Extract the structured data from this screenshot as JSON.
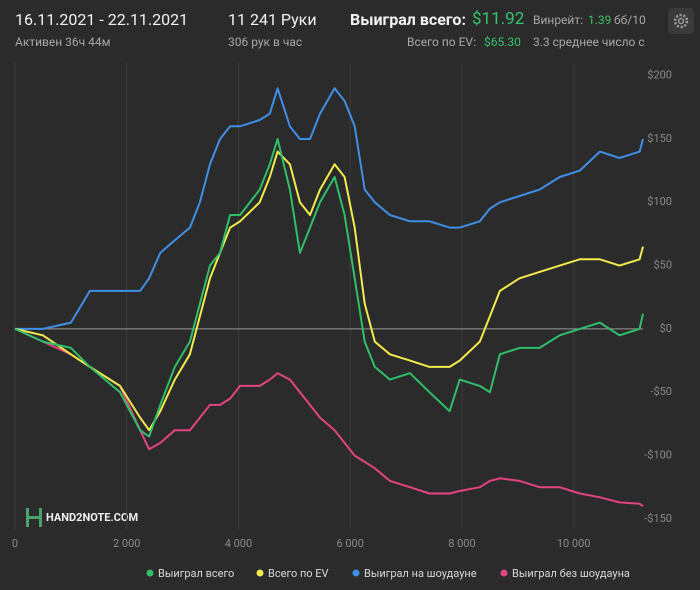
{
  "header": {
    "date_range": "16.11.2021 - 22.11.2021",
    "active": "Активен 36ч 44м",
    "hands": "11 241 Руки",
    "hands_per_hour": "306 рук в час",
    "won_label": "Выиграл всего:",
    "won_value": "$11.92",
    "ev_label": "Всего по EV:",
    "ev_value": "$65.30",
    "winrate_label": "Винрейт:",
    "winrate_value": "1.39",
    "winrate_unit": "бб/10",
    "avg_text": "3.3 среднее число с"
  },
  "chart_data": {
    "type": "line",
    "watermark": "HAND2NOTE.COM",
    "x": [
      0,
      500,
      1000,
      1340,
      1880,
      2240,
      2400,
      2600,
      2860,
      3130,
      3310,
      3490,
      3670,
      3850,
      4030,
      4380,
      4560,
      4700,
      4920,
      5100,
      5280,
      5460,
      5720,
      5900,
      6080,
      6260,
      6440,
      6710,
      7070,
      7420,
      7780,
      7960,
      8320,
      8500,
      8680,
      9030,
      9390,
      9750,
      10110,
      10470,
      10820,
      11180,
      11241
    ],
    "series": [
      {
        "name": "Выиграл всего",
        "color": "#2fbf6a",
        "values": [
          0,
          -10,
          -15,
          -30,
          -50,
          -80,
          -85,
          -60,
          -30,
          -10,
          20,
          50,
          60,
          90,
          90,
          110,
          130,
          150,
          110,
          60,
          80,
          100,
          120,
          90,
          40,
          -10,
          -30,
          -40,
          -35,
          -50,
          -65,
          -40,
          -45,
          -50,
          -20,
          -15,
          -15,
          -5,
          0,
          5,
          -5,
          0,
          12
        ]
      },
      {
        "name": "Всего по EV",
        "color": "#f3ea4b",
        "values": [
          0,
          -5,
          -20,
          -30,
          -45,
          -70,
          -80,
          -65,
          -40,
          -20,
          10,
          40,
          60,
          80,
          85,
          100,
          120,
          140,
          130,
          100,
          90,
          110,
          130,
          120,
          80,
          20,
          -10,
          -20,
          -25,
          -30,
          -30,
          -25,
          -10,
          10,
          30,
          40,
          45,
          50,
          55,
          55,
          50,
          55,
          65
        ]
      },
      {
        "name": "Выиграл на шоудауне",
        "color": "#3f8fe6",
        "values": [
          0,
          0,
          5,
          30,
          30,
          30,
          40,
          60,
          70,
          80,
          100,
          130,
          150,
          160,
          160,
          165,
          170,
          190,
          160,
          150,
          150,
          170,
          190,
          180,
          160,
          110,
          100,
          90,
          85,
          85,
          80,
          80,
          85,
          95,
          100,
          105,
          110,
          120,
          125,
          140,
          135,
          140,
          150
        ]
      },
      {
        "name": "Выиграл без шоудауна",
        "color": "#e2457f",
        "values": [
          0,
          -10,
          -20,
          -30,
          -45,
          -80,
          -95,
          -90,
          -80,
          -80,
          -70,
          -60,
          -60,
          -55,
          -45,
          -45,
          -40,
          -35,
          -40,
          -50,
          -60,
          -70,
          -80,
          -90,
          -100,
          -105,
          -110,
          -120,
          -125,
          -130,
          -130,
          -128,
          -125,
          -120,
          -118,
          -120,
          -125,
          -125,
          -130,
          -133,
          -137,
          -138,
          -140
        ]
      }
    ],
    "xlim": [
      0,
      11241
    ],
    "xticks": [
      0,
      {
        "value": 2000,
        "label": "2 000"
      },
      {
        "value": 4000,
        "label": "4 000"
      },
      {
        "value": 6000,
        "label": "6 000"
      },
      {
        "value": 8000,
        "label": "8 000"
      },
      {
        "value": 10000,
        "label": "10 000"
      }
    ],
    "ylim": [
      -158,
      210
    ],
    "yticks": [
      {
        "value": -150,
        "label": "-$150"
      },
      {
        "value": -100,
        "label": "-$100"
      },
      {
        "value": -50,
        "label": "-$50"
      },
      {
        "value": 0,
        "label": "$0"
      },
      {
        "value": 50,
        "label": "$50"
      },
      {
        "value": 100,
        "label": "$100"
      },
      {
        "value": 150,
        "label": "$150"
      },
      {
        "value": 200,
        "label": "$200"
      }
    ],
    "grid": "x",
    "legend": "bottom"
  }
}
